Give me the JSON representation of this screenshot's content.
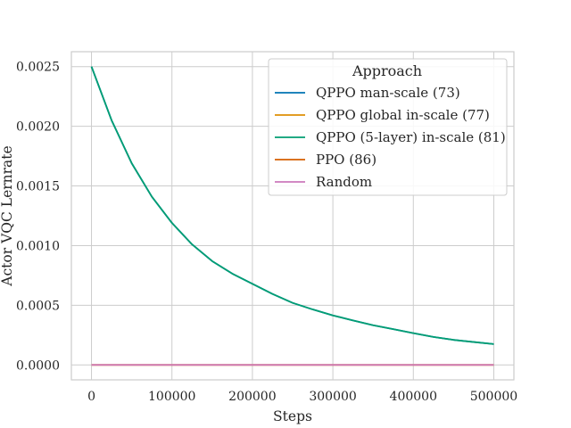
{
  "chart_data": {
    "type": "line",
    "title": "",
    "xlabel": "Steps",
    "ylabel": "Actor VQC Lernrate",
    "xlim": [
      -25000,
      525000
    ],
    "ylim": [
      -0.000125,
      0.002625
    ],
    "xticks": [
      0,
      100000,
      200000,
      300000,
      400000,
      500000
    ],
    "xtick_labels": [
      "0",
      "100000",
      "200000",
      "300000",
      "400000",
      "500000"
    ],
    "yticks": [
      0,
      0.0005,
      0.001,
      0.0015,
      0.002,
      0.0025
    ],
    "ytick_labels": [
      "0.0000",
      "0.0005",
      "0.0010",
      "0.0015",
      "0.0020",
      "0.0025"
    ],
    "grid": true,
    "legend_title": "Approach",
    "legend_position": "top-right",
    "x": [
      0,
      25000,
      50000,
      75000,
      100000,
      125000,
      150000,
      175000,
      200000,
      225000,
      250000,
      275000,
      300000,
      325000,
      350000,
      375000,
      400000,
      425000,
      450000,
      475000,
      500000
    ],
    "series": [
      {
        "name": "QPPO man-scale (73)",
        "color": "#0173b2",
        "values": [
          0.0025,
          0.00205,
          0.00169,
          0.00141,
          0.00119,
          0.00101,
          0.00087,
          0.000765,
          0.00068,
          0.000595,
          0.00052,
          0.000465,
          0.000415,
          0.000373,
          0.000333,
          0.0003,
          0.000266,
          0.000235,
          0.00021,
          0.000192,
          0.000175
        ]
      },
      {
        "name": "QPPO global in-scale (77)",
        "color": "#de8f05",
        "values": [
          0,
          0,
          0,
          0,
          0,
          0,
          0,
          0,
          0,
          0,
          0,
          0,
          0,
          0,
          0,
          0,
          0,
          0,
          0,
          0,
          0
        ]
      },
      {
        "name": "QPPO (5-layer) in-scale (81)",
        "color": "#029e73",
        "values": [
          0.0025,
          0.00205,
          0.00169,
          0.00141,
          0.00119,
          0.00101,
          0.00087,
          0.000765,
          0.00068,
          0.000595,
          0.00052,
          0.000465,
          0.000415,
          0.000373,
          0.000333,
          0.0003,
          0.000266,
          0.000235,
          0.00021,
          0.000192,
          0.000175
        ]
      },
      {
        "name": "PPO (86)",
        "color": "#d55e00",
        "values": [
          0,
          0,
          0,
          0,
          0,
          0,
          0,
          0,
          0,
          0,
          0,
          0,
          0,
          0,
          0,
          0,
          0,
          0,
          0,
          0,
          0
        ]
      },
      {
        "name": "Random",
        "color": "#cc78bc",
        "values": [
          0,
          0,
          0,
          0,
          0,
          0,
          0,
          0,
          0,
          0,
          0,
          0,
          0,
          0,
          0,
          0,
          0,
          0,
          0,
          0,
          0
        ]
      }
    ]
  }
}
